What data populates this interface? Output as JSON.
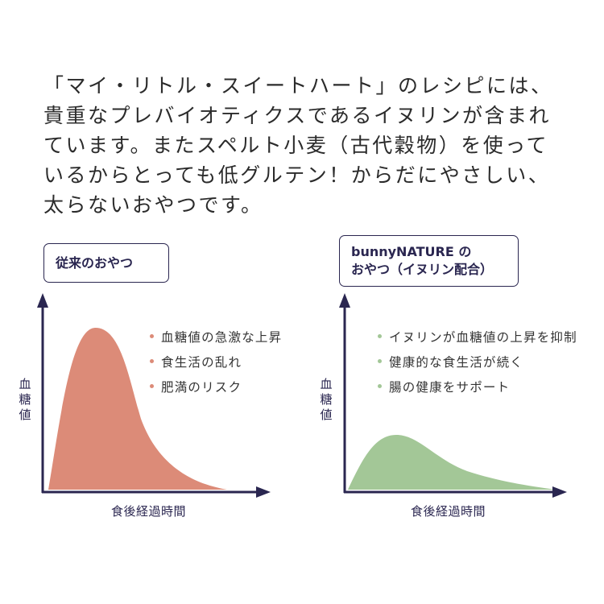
{
  "intro": {
    "lines": [
      "「マイ・リトル・スイートハート」のレシピには、",
      "貴重なプレバイオティクスであるイヌリンが含まれ",
      "ています。またスペルト小麦（古代穀物）を使って",
      "いるからとっても低グルテン！からだにやさしい、",
      "太らないおやつです。"
    ]
  },
  "colors": {
    "axis": "#2a2650",
    "conventional": "#dc8b78",
    "bunny": "#a3c797"
  },
  "left_panel": {
    "title": "従来のおやつ",
    "bullets": [
      "血糖値の急激な上昇",
      "食生活の乱れ",
      "肥満のリスク"
    ],
    "ylabel": [
      "血",
      "糖",
      "値"
    ],
    "xlabel": "食後経過時間"
  },
  "right_panel": {
    "title_line1": "bunnyNATURE の",
    "title_line2": "おやつ（イヌリン配合）",
    "bullets": [
      "イヌリンが血糖値の上昇を抑制",
      "健康的な食生活が続く",
      "腸の健康をサポート"
    ],
    "ylabel": [
      "血",
      "糖",
      "値"
    ],
    "xlabel": "食後経過時間"
  }
}
